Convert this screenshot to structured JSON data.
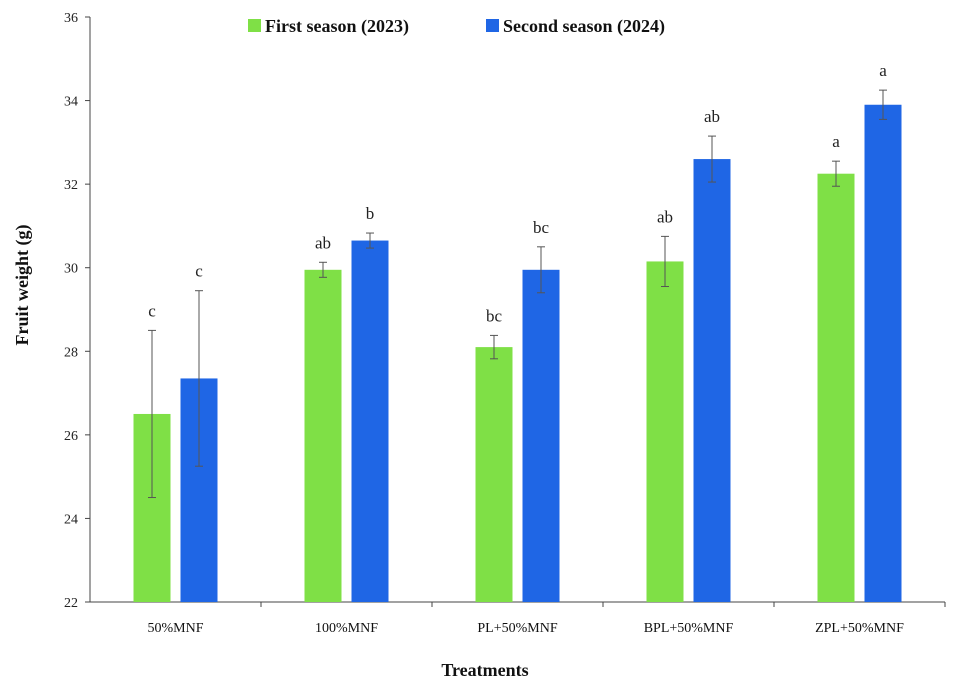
{
  "chart_data": {
    "type": "bar",
    "xlabel": "Treatments",
    "ylabel": "Fruit weight (g)",
    "ylim": [
      22,
      36
    ],
    "yticks": [
      22,
      24,
      26,
      28,
      30,
      32,
      34,
      36
    ],
    "categories": [
      "50%MNF",
      "100%MNF",
      "PL+50%MNF",
      "BPL+50%MNF",
      "ZPL+50%MNF"
    ],
    "legend_position": "top-center",
    "grid": false,
    "series": [
      {
        "name": "First season (2023)",
        "color": "#7FE046",
        "values": [
          26.5,
          29.95,
          28.1,
          30.15,
          32.25
        ],
        "errors": [
          2.0,
          0.18,
          0.28,
          0.6,
          0.3
        ],
        "letters": [
          "c",
          "ab",
          "bc",
          "ab",
          "a"
        ]
      },
      {
        "name": "Second season (2024)",
        "color": "#1F66E5",
        "values": [
          27.35,
          30.65,
          29.95,
          32.6,
          33.9
        ],
        "errors": [
          2.1,
          0.18,
          0.55,
          0.55,
          0.35
        ],
        "letters": [
          "c",
          "b",
          "bc",
          "ab",
          "a"
        ]
      }
    ]
  }
}
